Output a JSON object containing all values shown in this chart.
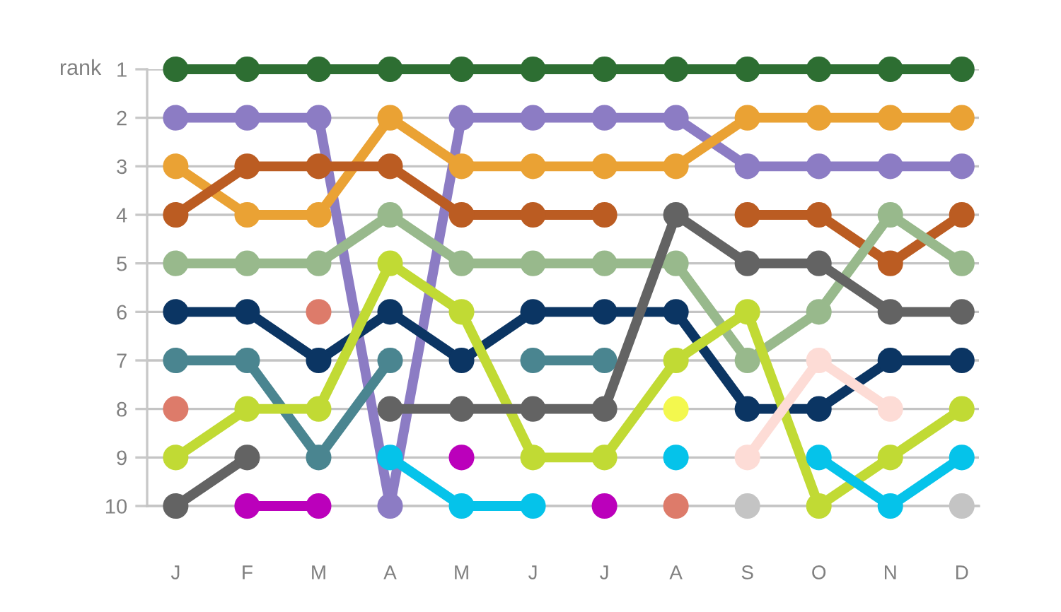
{
  "chart_data": {
    "type": "line",
    "ylabel": "rank",
    "categories": [
      "J",
      "F",
      "M",
      "A",
      "M",
      "J",
      "J",
      "A",
      "S",
      "O",
      "N",
      "D"
    ],
    "ylim": [
      10,
      1
    ],
    "yticks": [
      1,
      2,
      3,
      4,
      5,
      6,
      7,
      8,
      9,
      10
    ],
    "grid": "y",
    "marker": "circle",
    "line_style": "solid",
    "series": [
      {
        "color": "#2d6e32",
        "values": [
          1,
          1,
          1,
          1,
          1,
          1,
          1,
          1,
          1,
          1,
          1,
          1
        ]
      },
      {
        "color": "#8c7cc4",
        "values": [
          2,
          2,
          2,
          10,
          2,
          2,
          2,
          2,
          3,
          3,
          3,
          3
        ]
      },
      {
        "color": "#eaa234",
        "values": [
          3,
          4,
          4,
          2,
          3,
          3,
          3,
          3,
          2,
          2,
          2,
          2
        ]
      },
      {
        "color": "#bb5c22",
        "values": [
          4,
          3,
          3,
          3,
          4,
          4,
          4,
          null,
          4,
          4,
          5,
          4
        ]
      },
      {
        "color": "#98b98c",
        "values": [
          5,
          5,
          5,
          4,
          5,
          5,
          5,
          5,
          7,
          6,
          4,
          5
        ]
      },
      {
        "color": "#0b3563",
        "values": [
          6,
          6,
          7,
          6,
          7,
          6,
          6,
          6,
          8,
          8,
          7,
          7
        ]
      },
      {
        "color": "#4a8590",
        "values": [
          7,
          7,
          9,
          7,
          null,
          7,
          7,
          null,
          null,
          null,
          null,
          null
        ]
      },
      {
        "type": "scatter",
        "color": "#dd7b6a",
        "values": [
          8,
          null,
          6,
          null,
          null,
          null,
          null,
          10,
          null,
          null,
          null,
          null
        ]
      },
      {
        "color": "#c1da34",
        "values": [
          9,
          8,
          8,
          5,
          6,
          9,
          9,
          7,
          6,
          10,
          9,
          8
        ]
      },
      {
        "color": "#636363",
        "values": [
          10,
          9,
          null,
          8,
          8,
          8,
          8,
          4,
          5,
          5,
          6,
          6
        ]
      },
      {
        "color": "#bb00bb",
        "values": [
          null,
          10,
          10,
          null,
          9,
          null,
          10,
          null,
          null,
          null,
          null,
          null
        ]
      },
      {
        "color": "#05c3ea",
        "values": [
          null,
          null,
          null,
          9,
          10,
          10,
          null,
          9,
          null,
          9,
          10,
          9
        ]
      },
      {
        "type": "scatter",
        "color": "#f3f84e",
        "values": [
          null,
          null,
          null,
          null,
          null,
          null,
          null,
          8,
          null,
          null,
          null,
          null
        ]
      },
      {
        "color": "#fddcd6",
        "values": [
          null,
          null,
          null,
          null,
          null,
          null,
          null,
          null,
          9,
          7,
          8,
          null
        ]
      },
      {
        "type": "scatter",
        "color": "#c4c4c4",
        "values": [
          null,
          null,
          null,
          null,
          null,
          null,
          null,
          null,
          10,
          null,
          null,
          10
        ]
      }
    ]
  }
}
